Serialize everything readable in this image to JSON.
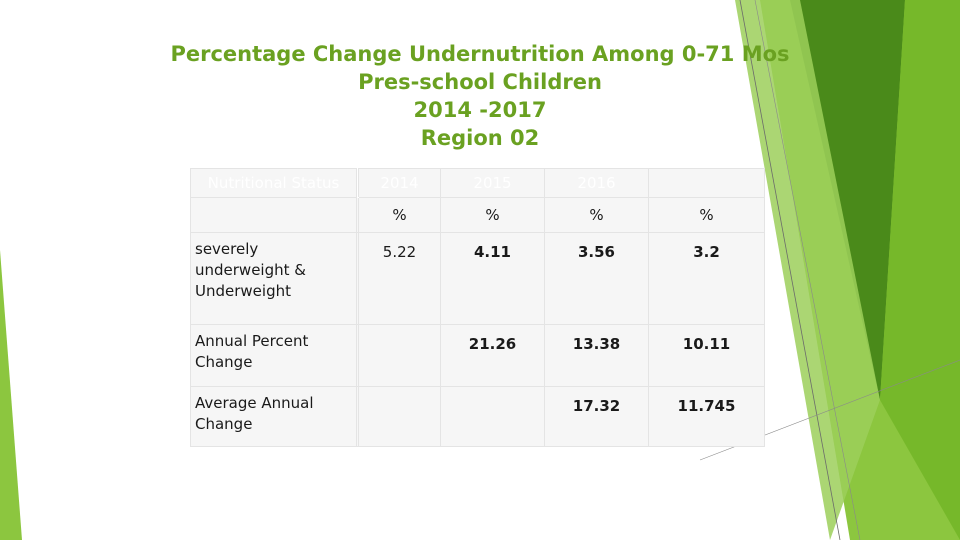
{
  "title": {
    "line1": "Percentage Change Undernutrition Among 0-71 Mos",
    "line2": "Pres-school Children",
    "line3": "2014 -2017",
    "line4": "Region 02"
  },
  "table": {
    "header": {
      "status": "Nutritional Status",
      "years": [
        "2014",
        "2015",
        "2016",
        ""
      ]
    },
    "units": [
      "%",
      "%",
      "%",
      "%"
    ],
    "rows": [
      {
        "label": "severely underweight  & Underweight",
        "values": [
          "5.22",
          "4.11",
          "3.56",
          "3.2"
        ]
      },
      {
        "label": "Annual Percent Change",
        "values": [
          "",
          "21.26",
          "13.38",
          "10.11"
        ]
      },
      {
        "label": "Average Annual Change",
        "values": [
          "",
          "",
          "17.32",
          "11.745"
        ]
      }
    ]
  },
  "colors": {
    "accent": "#7fb62c",
    "title": "#6aa121",
    "dark_green": "#4a8a1a"
  }
}
